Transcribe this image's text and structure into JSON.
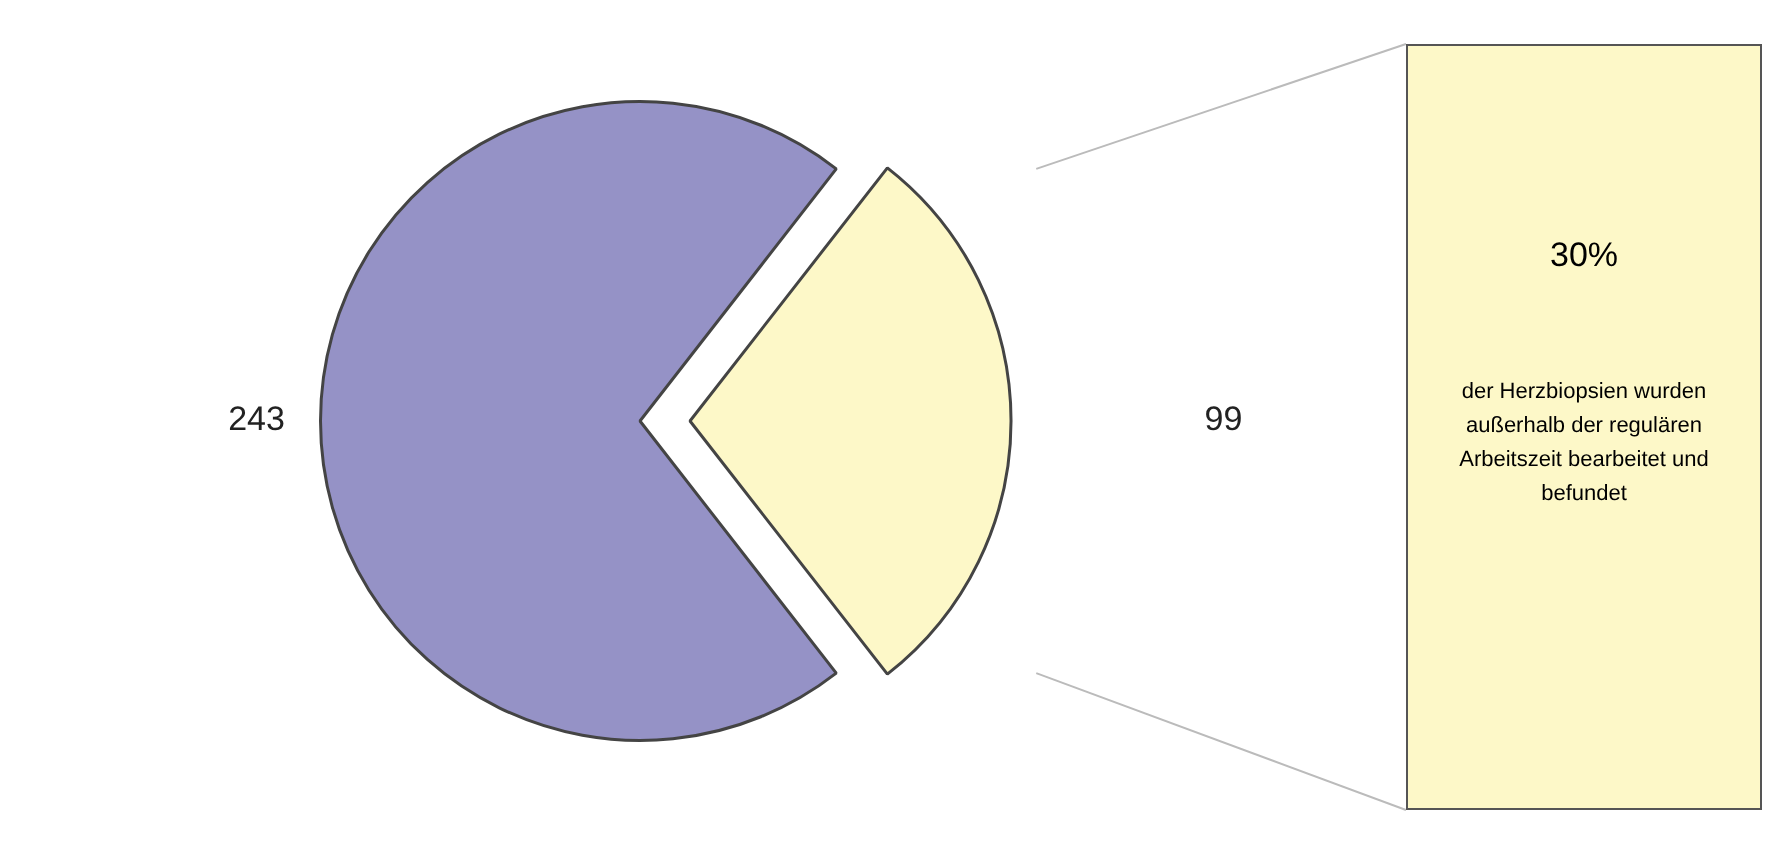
{
  "chart_data": {
    "type": "pie",
    "categories": [
      null,
      null
    ],
    "values": [
      243,
      99
    ],
    "colors": [
      "#9592c6",
      "#fdf8c8"
    ],
    "data_labels": true,
    "legend": false,
    "annotations": [
      "30%",
      "der Herzbiopsien wurden außerhalb der regulären Arbeitszeit bearbeitet und befundet"
    ]
  }
}
